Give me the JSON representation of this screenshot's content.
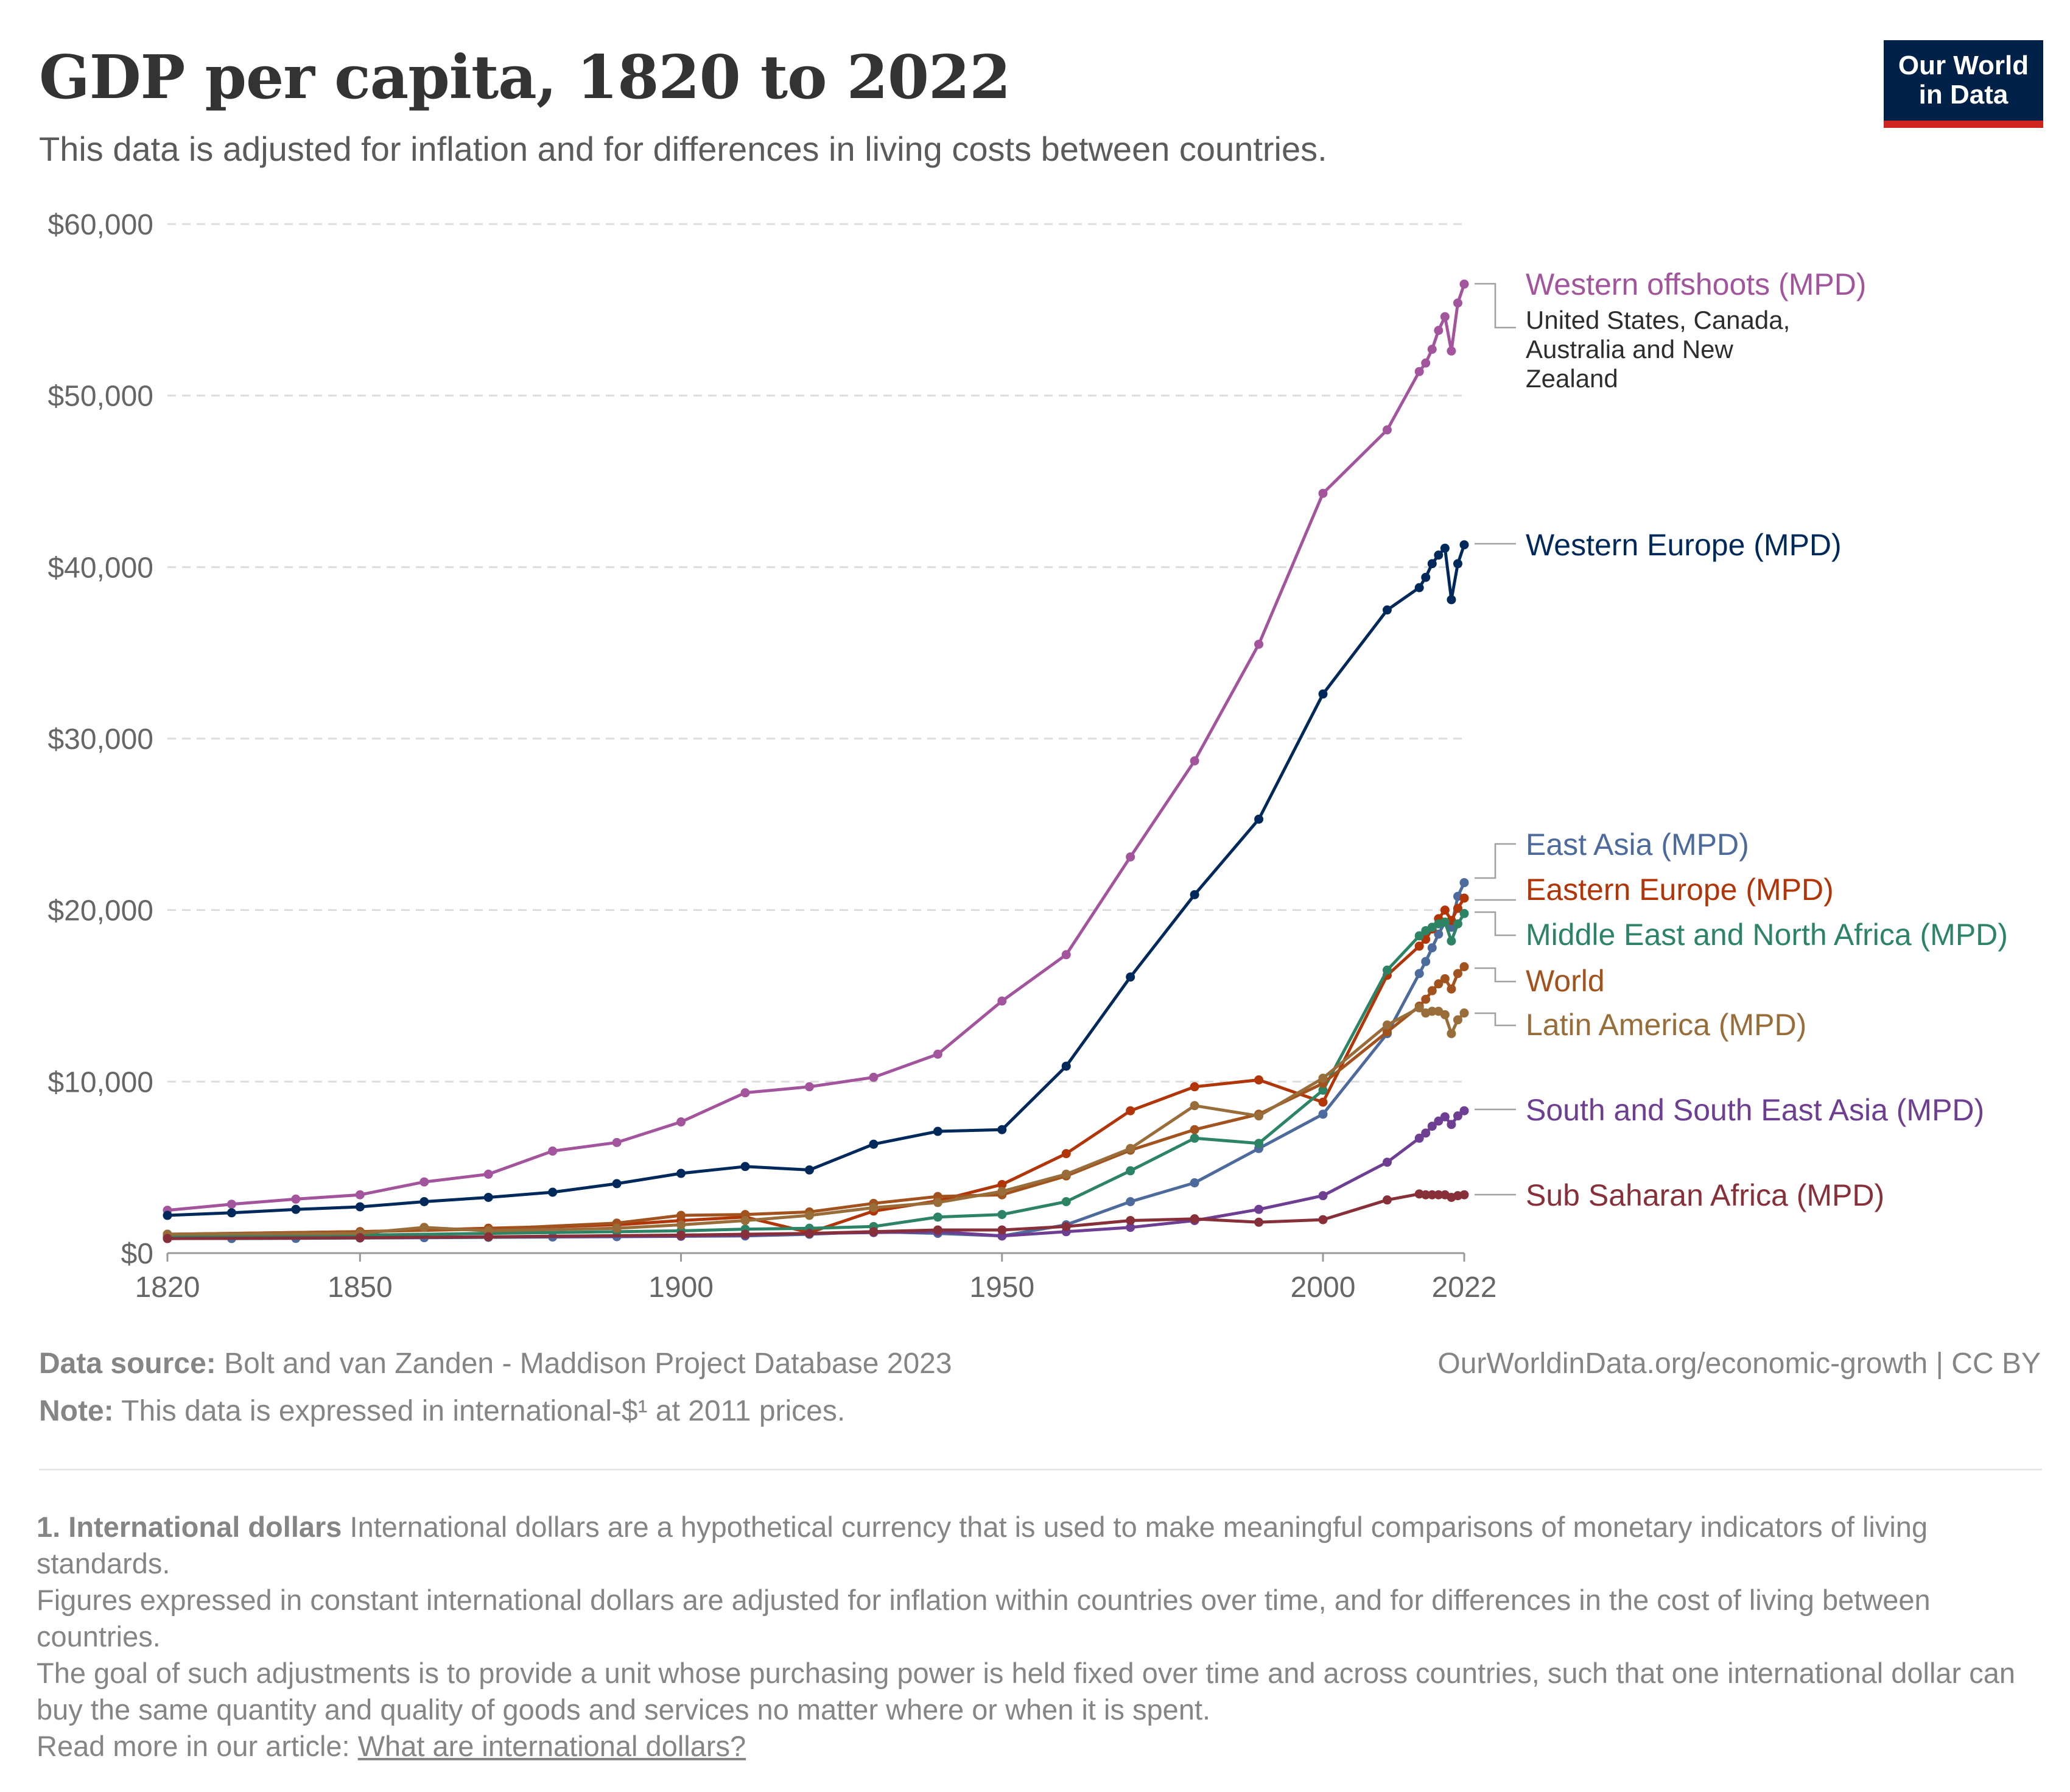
{
  "header": {
    "title": "GDP per capita, 1820 to 2022",
    "subtitle": "This data is adjusted for inflation and for differences in living costs between countries.",
    "logo_line1": "Our World",
    "logo_line2": "in Data"
  },
  "colors": {
    "Western offshoots (MPD)": "#a2559c",
    "Western Europe (MPD)": "#00295b",
    "East Asia (MPD)": "#4c6a9c",
    "Eastern Europe (MPD)": "#b13507",
    "Middle East and North Africa (MPD)": "#2c8465",
    "World": "#a2521c",
    "Latin America (MPD)": "#996d39",
    "South and South East Asia (MPD)": "#6d3e91",
    "Sub Saharan Africa (MPD)": "#883039"
  },
  "chart_data": {
    "type": "line",
    "title": "GDP per capita, 1820 to 2022",
    "subtitle": "This data is adjusted for inflation and for differences in living costs between countries.",
    "xlabel": "",
    "ylabel": "",
    "xlim": [
      1820,
      2022
    ],
    "ylim": [
      0,
      60000
    ],
    "x_ticks": [
      "1820",
      "1850",
      "1900",
      "1950",
      "2000",
      "2022"
    ],
    "x_tick_values": [
      1820,
      1850,
      1900,
      1950,
      2000,
      2022
    ],
    "y_ticks": [
      "$0",
      "$10,000",
      "$20,000",
      "$30,000",
      "$40,000",
      "$50,000",
      "$60,000"
    ],
    "y_tick_values": [
      0,
      10000,
      20000,
      30000,
      40000,
      50000,
      60000
    ],
    "grid": "horizontal dashed",
    "legend": "right, labels at line ends",
    "series": [
      {
        "name": "Western offshoots (MPD)",
        "note": "United States, Canada, Australia and New Zealand",
        "x": [
          1820,
          1830,
          1840,
          1850,
          1860,
          1870,
          1880,
          1890,
          1900,
          1910,
          1920,
          1930,
          1940,
          1950,
          1960,
          1970,
          1980,
          1990,
          2000,
          2010,
          2015,
          2016,
          2017,
          2018,
          2019,
          2020,
          2021,
          2022
        ],
        "y": [
          2500,
          2850,
          3150,
          3400,
          4150,
          4600,
          5950,
          6450,
          7650,
          9350,
          9700,
          10250,
          11600,
          14700,
          17400,
          23100,
          28700,
          35500,
          44300,
          48000,
          51400,
          51900,
          52700,
          53800,
          54600,
          52600,
          55400,
          56500
        ]
      },
      {
        "name": "Western Europe (MPD)",
        "x": [
          1820,
          1830,
          1840,
          1850,
          1860,
          1870,
          1880,
          1890,
          1900,
          1910,
          1920,
          1930,
          1940,
          1950,
          1960,
          1970,
          1980,
          1990,
          2000,
          2010,
          2015,
          2016,
          2017,
          2018,
          2019,
          2020,
          2021,
          2022
        ],
        "y": [
          2200,
          2350,
          2550,
          2700,
          3000,
          3250,
          3550,
          4050,
          4650,
          5050,
          4850,
          6350,
          7100,
          7200,
          10900,
          16100,
          20900,
          25300,
          32600,
          37500,
          38800,
          39400,
          40200,
          40700,
          41100,
          38100,
          40200,
          41300
        ]
      },
      {
        "name": "East Asia (MPD)",
        "x": [
          1820,
          1830,
          1840,
          1850,
          1860,
          1870,
          1880,
          1890,
          1900,
          1910,
          1920,
          1930,
          1940,
          1950,
          1960,
          1970,
          1980,
          1990,
          2000,
          2010,
          2015,
          2016,
          2017,
          2018,
          2019,
          2020,
          2021,
          2022
        ],
        "y": [
          900,
          850,
          860,
          880,
          900,
          920,
          940,
          960,
          980,
          1000,
          1100,
          1250,
          1150,
          1000,
          1650,
          3000,
          4100,
          6100,
          8100,
          12800,
          16300,
          17000,
          17800,
          18600,
          19300,
          19000,
          20800,
          21600
        ]
      },
      {
        "name": "Eastern Europe (MPD)",
        "x": [
          1820,
          1850,
          1870,
          1890,
          1900,
          1910,
          1920,
          1930,
          1940,
          1950,
          1960,
          1970,
          1980,
          1990,
          2000,
          2010,
          2015,
          2016,
          2017,
          2018,
          2019,
          2020,
          2021,
          2022
        ],
        "y": [
          1100,
          1250,
          1450,
          1650,
          1900,
          2100,
          1200,
          2450,
          3050,
          4000,
          5800,
          8300,
          9700,
          10100,
          8800,
          16200,
          17900,
          18300,
          18900,
          19500,
          20000,
          19400,
          20100,
          20700
        ]
      },
      {
        "name": "Middle East and North Africa (MPD)",
        "x": [
          1820,
          1850,
          1870,
          1890,
          1900,
          1910,
          1920,
          1930,
          1940,
          1950,
          1960,
          1970,
          1980,
          1990,
          2000,
          2010,
          2015,
          2016,
          2017,
          2018,
          2019,
          2020,
          2021,
          2022
        ],
        "y": [
          1000,
          1050,
          1150,
          1250,
          1300,
          1400,
          1450,
          1550,
          2100,
          2250,
          3000,
          4800,
          6700,
          6400,
          9500,
          16500,
          18500,
          18800,
          19000,
          19200,
          19300,
          18200,
          19200,
          19800
        ]
      },
      {
        "name": "World",
        "x": [
          1820,
          1850,
          1870,
          1890,
          1900,
          1910,
          1920,
          1930,
          1940,
          1950,
          1960,
          1970,
          1980,
          1990,
          2000,
          2010,
          2015,
          2016,
          2017,
          2018,
          2019,
          2020,
          2021,
          2022
        ],
        "y": [
          1100,
          1250,
          1400,
          1750,
          2200,
          2250,
          2400,
          2900,
          3300,
          3400,
          4500,
          6000,
          7200,
          8100,
          9900,
          12900,
          14400,
          14800,
          15300,
          15700,
          16000,
          15400,
          16300,
          16700
        ]
      },
      {
        "name": "Latin America (MPD)",
        "x": [
          1820,
          1850,
          1860,
          1870,
          1890,
          1900,
          1910,
          1920,
          1930,
          1940,
          1950,
          1960,
          1970,
          1980,
          1990,
          2000,
          2010,
          2015,
          2016,
          2017,
          2018,
          2019,
          2020,
          2021,
          2022
        ],
        "y": [
          1100,
          1150,
          1500,
          1300,
          1450,
          1650,
          1900,
          2200,
          2650,
          2950,
          3600,
          4600,
          6100,
          8600,
          8000,
          10200,
          13300,
          14300,
          14000,
          14100,
          14100,
          13900,
          12800,
          13600,
          14000
        ]
      },
      {
        "name": "South and South East Asia (MPD)",
        "x": [
          1820,
          1850,
          1870,
          1900,
          1910,
          1920,
          1930,
          1940,
          1950,
          1960,
          1970,
          1980,
          1990,
          2000,
          2010,
          2015,
          2016,
          2017,
          2018,
          2019,
          2020,
          2021,
          2022
        ],
        "y": [
          850,
          900,
          950,
          1000,
          1050,
          1150,
          1200,
          1250,
          1000,
          1250,
          1500,
          1900,
          2550,
          3350,
          5300,
          6700,
          7000,
          7400,
          7700,
          7950,
          7500,
          8000,
          8300
        ]
      },
      {
        "name": "Sub Saharan Africa (MPD)",
        "x": [
          1820,
          1850,
          1870,
          1900,
          1910,
          1920,
          1930,
          1940,
          1950,
          1960,
          1970,
          1980,
          1990,
          2000,
          2010,
          2015,
          2016,
          2017,
          2018,
          2019,
          2020,
          2021,
          2022
        ],
        "y": [
          850,
          900,
          950,
          1050,
          1100,
          1150,
          1250,
          1350,
          1350,
          1550,
          1900,
          2000,
          1800,
          1950,
          3100,
          3450,
          3400,
          3400,
          3400,
          3400,
          3250,
          3350,
          3400
        ]
      }
    ]
  },
  "labels": {
    "western_offshoots": "Western offshoots (MPD)",
    "western_offshoots_note_line1": "United States, Canada,",
    "western_offshoots_note_line2": "Australia and New",
    "western_offshoots_note_line3": "Zealand",
    "western_europe": "Western Europe (MPD)",
    "east_asia": "East Asia (MPD)",
    "eastern_europe": "Eastern Europe (MPD)",
    "mena": "Middle East and North Africa (MPD)",
    "world": "World",
    "latin_america": "Latin America (MPD)",
    "south_asia": "South and South East Asia (MPD)",
    "sub_saharan": "Sub Saharan Africa (MPD)"
  },
  "footer": {
    "source_label": "Data source:",
    "source_text": "Bolt and van Zanden - Maddison Project Database 2023",
    "url_text": "OurWorldinData.org/economic-growth | CC BY",
    "note_label": "Note:",
    "note_text": "This data is expressed in international-$¹ at 2011 prices."
  },
  "notes": {
    "heading": "1. International dollars",
    "p1": "International dollars are a hypothetical currency that is used to make meaningful comparisons of monetary indicators of living standards.",
    "p2": "Figures expressed in constant international dollars are adjusted for inflation within countries over time, and for differences in the cost of living between countries.",
    "p3": "The goal of such adjustments is to provide a unit whose purchasing power is held fixed over time and across countries, such that one international dollar can buy the same quantity and quality of goods and services no matter where or when it is spent.",
    "read_more_prefix": "Read more in our article:",
    "read_more_link": "What are international dollars?"
  }
}
